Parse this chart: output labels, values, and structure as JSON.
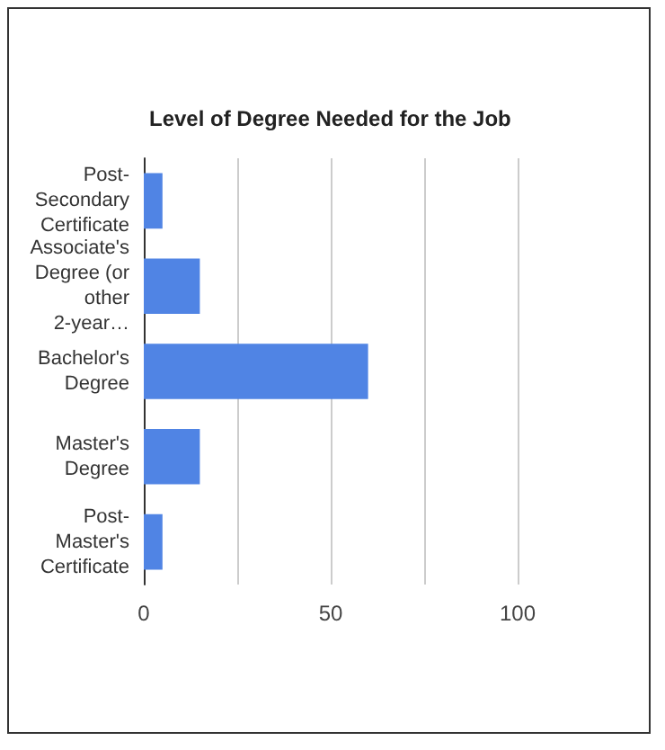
{
  "chart_data": {
    "type": "bar",
    "orientation": "horizontal",
    "title": "Level of Degree Needed for the Job",
    "categories": [
      "Post-Secondary Certificate",
      "Associate's Degree (or other 2-year…",
      "Bachelor's Degree",
      "Master's Degree",
      "Post-Master's Certificate"
    ],
    "values": [
      5,
      15,
      60,
      15,
      5
    ],
    "color": "#5084e4",
    "xlim": [
      0,
      100
    ],
    "xticks": [
      0,
      {
        "value": 25,
        "label": null
      },
      50,
      {
        "value": 75,
        "label": null
      },
      100
    ],
    "grid": "x"
  }
}
